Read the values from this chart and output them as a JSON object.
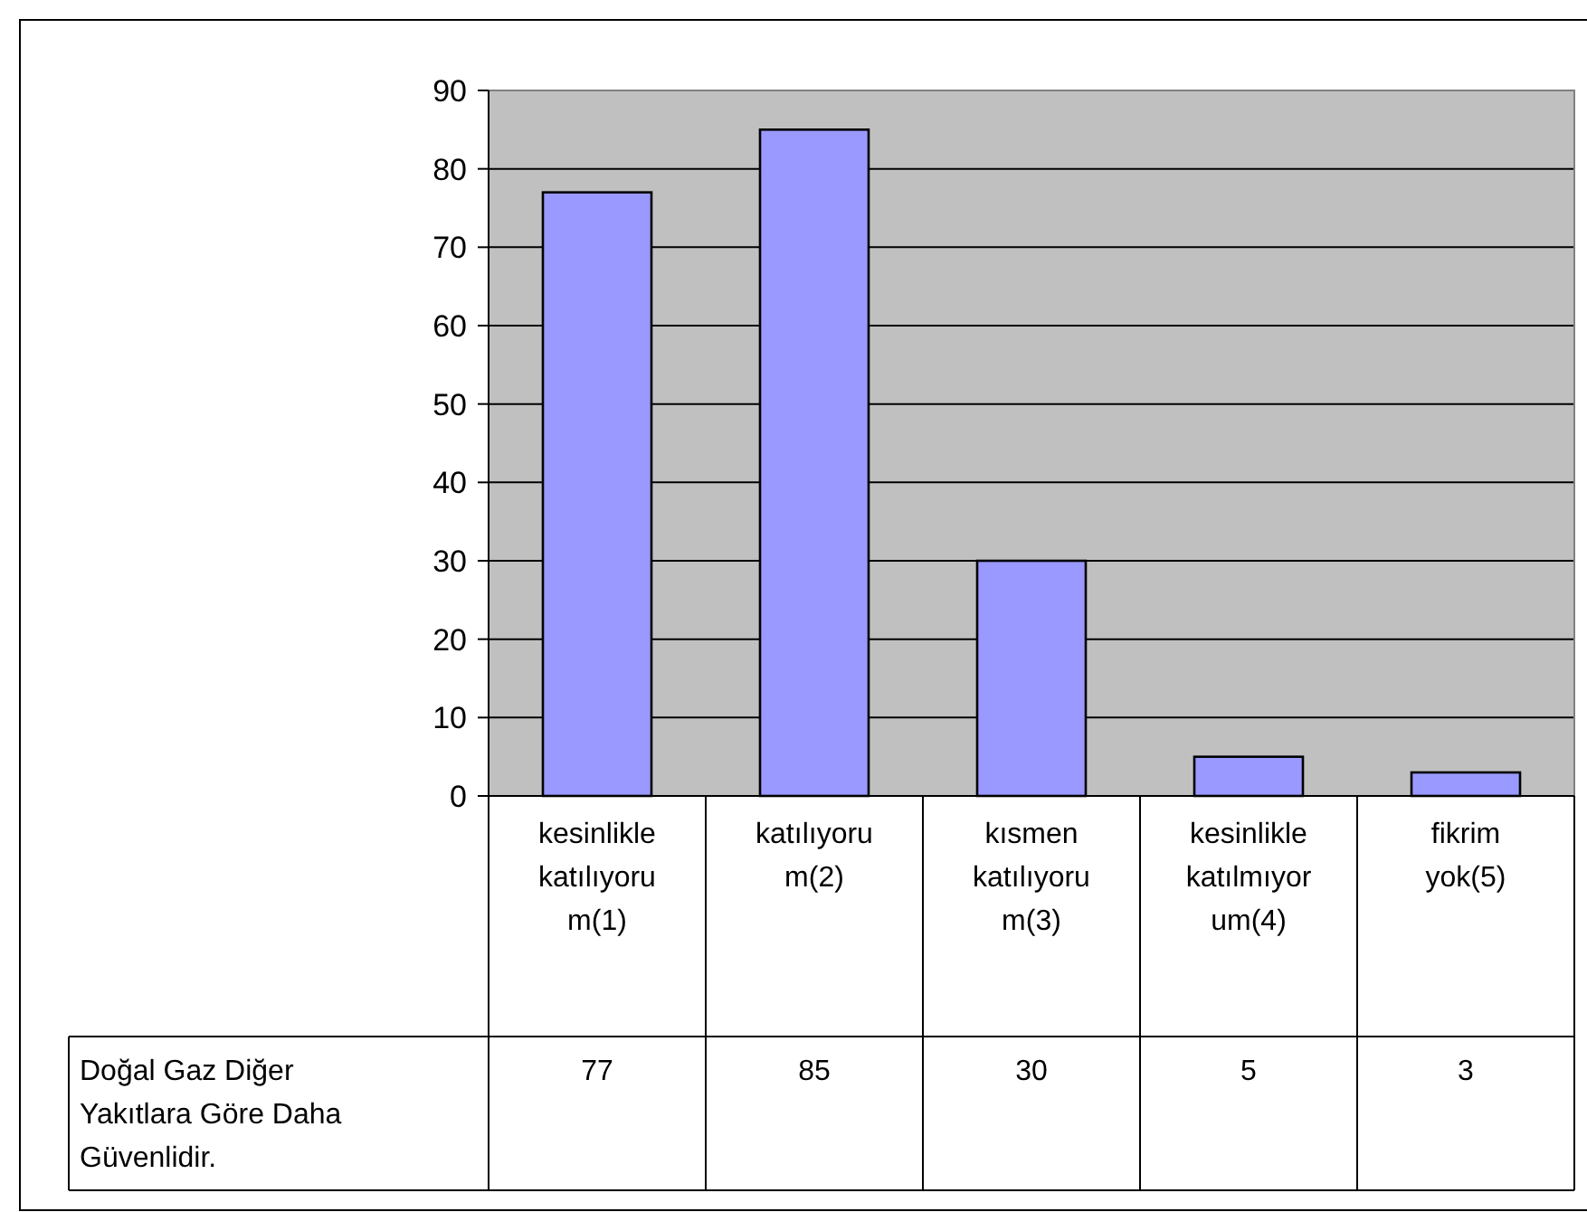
{
  "chart_data": {
    "type": "bar",
    "categories": [
      "kesinlikle katılıyorum(1)",
      "katılıyorum(2)",
      "kısmen katılıyorum(3)",
      "kesinlikle katılmıyorum(4)",
      "fikrim yok(5)"
    ],
    "series": [
      {
        "name": "Doğal Gaz Diğer Yakıtlara Göre Daha Güvenlidir.",
        "color": "#9999ff",
        "values": [
          77,
          85,
          30,
          5,
          3
        ]
      }
    ],
    "ylim": [
      0,
      90
    ],
    "yticks": [
      0,
      10,
      20,
      30,
      40,
      50,
      60,
      70,
      80,
      90
    ],
    "grid": "y",
    "data_labels": true
  }
}
